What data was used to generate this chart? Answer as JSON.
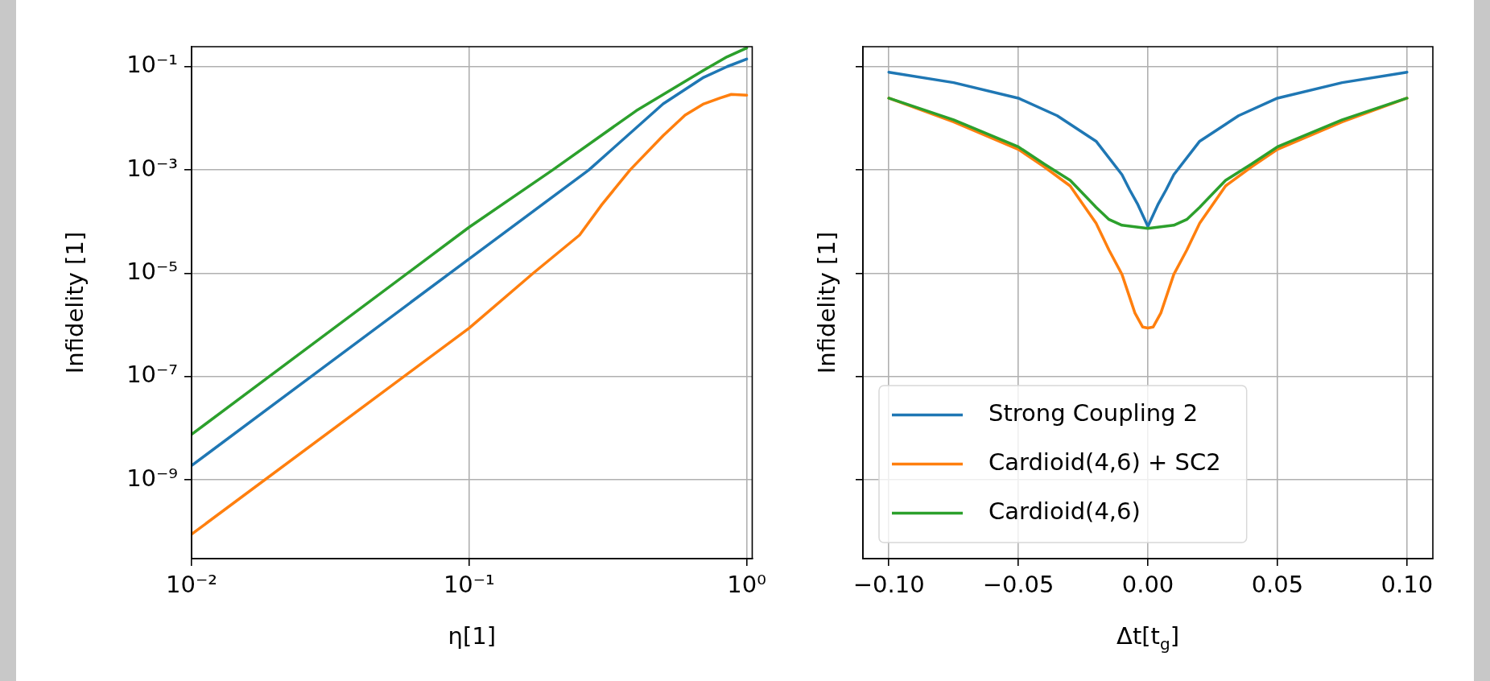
{
  "chart_data": [
    {
      "type": "line",
      "xlabel": "η[1]",
      "ylabel": "Infidelity [1]",
      "log": "xy",
      "grid": true,
      "xlim": [
        0.01,
        1.047
      ],
      "ylim": [
        3e-11,
        0.243
      ],
      "xticks": [
        {
          "value": 0.01,
          "label": "10⁻²"
        },
        {
          "value": 0.1,
          "label": "10⁻¹"
        },
        {
          "value": 1,
          "label": "10⁰"
        }
      ],
      "yticks": [
        {
          "value": 1e-09,
          "label": "10⁻⁹"
        },
        {
          "value": 1e-07,
          "label": "10⁻⁷"
        },
        {
          "value": 1e-05,
          "label": "10⁻⁵"
        },
        {
          "value": 0.001,
          "label": "10⁻³"
        },
        {
          "value": 0.1,
          "label": "10⁻¹"
        }
      ],
      "series": [
        {
          "color": "#1f77b4",
          "x": [
            0.01,
            0.1,
            0.27,
            0.5,
            0.7,
            0.85,
            1.0
          ],
          "values": [
            1.9e-09,
            1.9e-05,
            0.001,
            0.019,
            0.062,
            0.1,
            0.14
          ]
        },
        {
          "color": "#ff7f0e",
          "x": [
            0.01,
            0.1,
            0.17,
            0.25,
            0.3,
            0.38,
            0.5,
            0.6,
            0.7,
            0.8,
            0.88,
            1.0
          ],
          "values": [
            8.9e-11,
            8.7e-07,
            1e-05,
            5.5e-05,
            0.00021,
            0.001,
            0.0046,
            0.0115,
            0.019,
            0.0245,
            0.029,
            0.028
          ]
        },
        {
          "color": "#2ca02c",
          "x": [
            0.01,
            0.1,
            0.2,
            0.4,
            0.7,
            0.85,
            1.0
          ],
          "values": [
            7.6e-09,
            7.8e-05,
            0.001,
            0.014,
            0.085,
            0.155,
            0.23
          ]
        }
      ]
    },
    {
      "type": "line",
      "xlabel": "Δt[t$_{g}$]",
      "ylabel": "Infidelity [1]",
      "log": "y",
      "grid": true,
      "legend": "lower left",
      "tick_labels": "x",
      "xlim": [
        -0.11,
        0.11
      ],
      "ylim": [
        3e-11,
        0.243
      ],
      "xticks": [
        {
          "value": -0.1,
          "label": "−0.10"
        },
        {
          "value": -0.05,
          "label": "−0.05"
        },
        {
          "value": 0,
          "label": "0.00"
        },
        {
          "value": 0.05,
          "label": "0.05"
        },
        {
          "value": 0.1,
          "label": "0.10"
        }
      ],
      "yticks": [
        1e-09,
        1e-07,
        1e-05,
        0.001,
        0.1
      ],
      "series": [
        {
          "name": "Strong Coupling 2",
          "color": "#1f77b4",
          "x": [
            -0.1,
            -0.075,
            -0.05,
            -0.035,
            -0.02,
            -0.01,
            -0.007,
            -0.004,
            0,
            0.004,
            0.007,
            0.01,
            0.02,
            0.035,
            0.05,
            0.075,
            0.1
          ],
          "values": [
            0.078,
            0.049,
            0.0245,
            0.0112,
            0.0036,
            0.00081,
            0.00041,
            0.00022,
            8.1e-05,
            0.00022,
            0.00041,
            0.00081,
            0.0036,
            0.0112,
            0.0245,
            0.049,
            0.078
          ]
        },
        {
          "name": "Cardioid(4,6) + SC2",
          "color": "#ff7f0e",
          "x": [
            -0.1,
            -0.075,
            -0.05,
            -0.04,
            -0.03,
            -0.02,
            -0.015,
            -0.01,
            -0.005,
            -0.002,
            0,
            0.002,
            0.005,
            0.01,
            0.015,
            0.02,
            0.03,
            0.04,
            0.05,
            0.075,
            0.1
          ],
          "values": [
            0.0245,
            0.0085,
            0.0025,
            0.00115,
            0.00049,
            9.3e-05,
            2.8e-05,
            9.5e-06,
            1.7e-06,
            9.1e-07,
            8.7e-07,
            9.1e-07,
            1.7e-06,
            9.5e-06,
            2.8e-05,
            9.3e-05,
            0.00049,
            0.00115,
            0.0025,
            0.0085,
            0.0245
          ]
        },
        {
          "name": "Cardioid(4,6)",
          "color": "#2ca02c",
          "x": [
            -0.1,
            -0.075,
            -0.05,
            -0.04,
            -0.03,
            -0.02,
            -0.015,
            -0.01,
            0,
            0.01,
            0.015,
            0.02,
            0.03,
            0.04,
            0.05,
            0.075,
            0.1
          ],
          "values": [
            0.0245,
            0.0093,
            0.0028,
            0.0013,
            0.00063,
            0.00019,
            0.00011,
            8.5e-05,
            7.4e-05,
            8.5e-05,
            0.00011,
            0.00019,
            0.00063,
            0.0013,
            0.0028,
            0.0093,
            0.0245
          ]
        }
      ]
    }
  ]
}
